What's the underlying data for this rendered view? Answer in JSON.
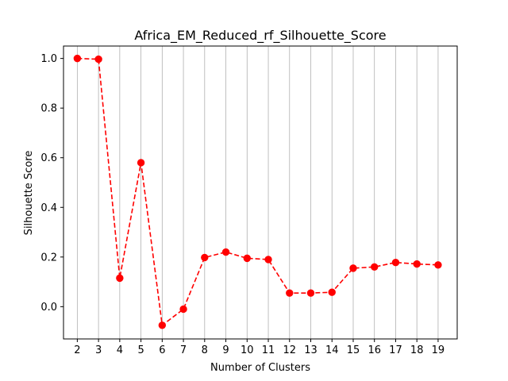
{
  "chart_data": {
    "type": "line",
    "title": "Africa_EM_Reduced_rf_Silhouette_Score",
    "xlabel": "Number of Clusters",
    "ylabel": "Silhouette Score",
    "x": [
      2,
      3,
      4,
      5,
      6,
      7,
      8,
      9,
      10,
      11,
      12,
      13,
      14,
      15,
      16,
      17,
      18,
      19
    ],
    "series": [
      {
        "values": [
          1.0,
          0.997,
          0.115,
          0.58,
          -0.075,
          -0.01,
          0.198,
          0.22,
          0.195,
          0.19,
          0.055,
          0.055,
          0.058,
          0.155,
          0.16,
          0.178,
          0.172,
          0.168
        ]
      }
    ],
    "xlim": [
      1.35,
      19.9
    ],
    "ylim": [
      -0.13,
      1.05
    ],
    "yticks": [
      0.0,
      0.2,
      0.4,
      0.6,
      0.8,
      1.0
    ],
    "xticks": [
      2,
      3,
      4,
      5,
      6,
      7,
      8,
      9,
      10,
      11,
      12,
      13,
      14,
      15,
      16,
      17,
      18,
      19
    ],
    "grid": "vertical",
    "line_color": "#ff0000",
    "line_style": "dashed",
    "marker": "circle",
    "grid_color": "#b0b0b0"
  }
}
